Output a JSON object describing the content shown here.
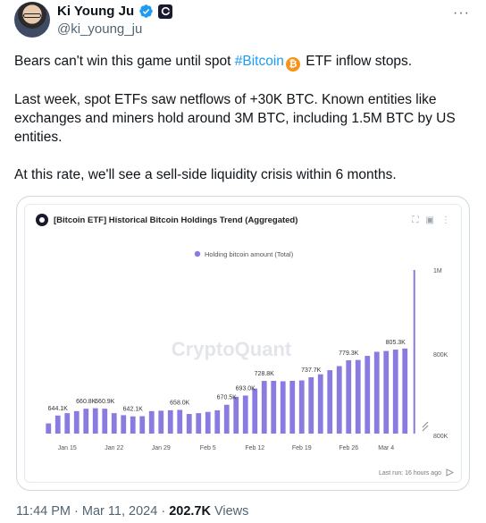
{
  "author": {
    "name": "Ki Young Ju",
    "handle": "@ki_young_ju"
  },
  "tweet": {
    "line1_pre": "Bears can't win this game until spot ",
    "hashtag": "#Bitcoin",
    "line1_post": " ETF inflow stops.",
    "para2": "Last week, spot ETFs saw netflows of +30K BTC. Known entities like exchanges and miners hold around 3M BTC, including 1.5M BTC by US entities.",
    "para3": "At this rate, we'll see a sell-side liquidity crisis within 6 months."
  },
  "meta": {
    "time": "11:44 PM",
    "sep1": "·",
    "date": "Mar 11, 2024",
    "sep2": "·",
    "views_count": "202.7K",
    "views_label": "Views"
  },
  "chart_card": {
    "title": "[Bitcoin ETF] Historical Bitcoin Holdings Trend (Aggregated)",
    "watermark": "CryptoQuant",
    "last_run": "Last run: 16 hours ago"
  },
  "chart_data": {
    "type": "bar",
    "legend": [
      "Holding bitcoin amount (Total)"
    ],
    "legend_position": "top-center",
    "series": [
      {
        "name": "Holding bitcoin amount (Total)",
        "color": "#8a7be0",
        "values": [
          625000,
          644100,
          650000,
          655000,
          660800,
          662000,
          660900,
          650000,
          645000,
          642100,
          642500,
          655000,
          656000,
          657000,
          658000,
          648000,
          650000,
          653000,
          657000,
          670500,
          690000,
          693000,
          710000,
          728800,
          729000,
          728000,
          729000,
          730000,
          737700,
          745000,
          755000,
          765000,
          779300,
          780000,
          790000,
          800000,
          802000,
          805300,
          808000,
          1000000
        ]
      }
    ],
    "data_labels": [
      {
        "index": 1,
        "text": "644.1K"
      },
      {
        "index": 4,
        "text": "660.8K"
      },
      {
        "index": 6,
        "text": "660.9K"
      },
      {
        "index": 9,
        "text": "642.1K"
      },
      {
        "index": 14,
        "text": "658.0K"
      },
      {
        "index": 19,
        "text": "670.5K"
      },
      {
        "index": 21,
        "text": "693.0K"
      },
      {
        "index": 23,
        "text": "728.8K"
      },
      {
        "index": 28,
        "text": "737.7K"
      },
      {
        "index": 32,
        "text": "779.3K"
      },
      {
        "index": 37,
        "text": "805.3K"
      }
    ],
    "x_ticks": [
      {
        "index": 2,
        "text": "Jan 15"
      },
      {
        "index": 7,
        "text": "Jan 22"
      },
      {
        "index": 12,
        "text": "Jan 29"
      },
      {
        "index": 17,
        "text": "Feb 5"
      },
      {
        "index": 22,
        "text": "Feb 12"
      },
      {
        "index": 27,
        "text": "Feb 19"
      },
      {
        "index": 32,
        "text": "Feb 26"
      },
      {
        "index": 36,
        "text": "Mar 4"
      }
    ],
    "y_ticks": [
      "1M",
      "800K",
      "800K"
    ],
    "ylim": [
      600000,
      1000000
    ],
    "grid": false
  }
}
